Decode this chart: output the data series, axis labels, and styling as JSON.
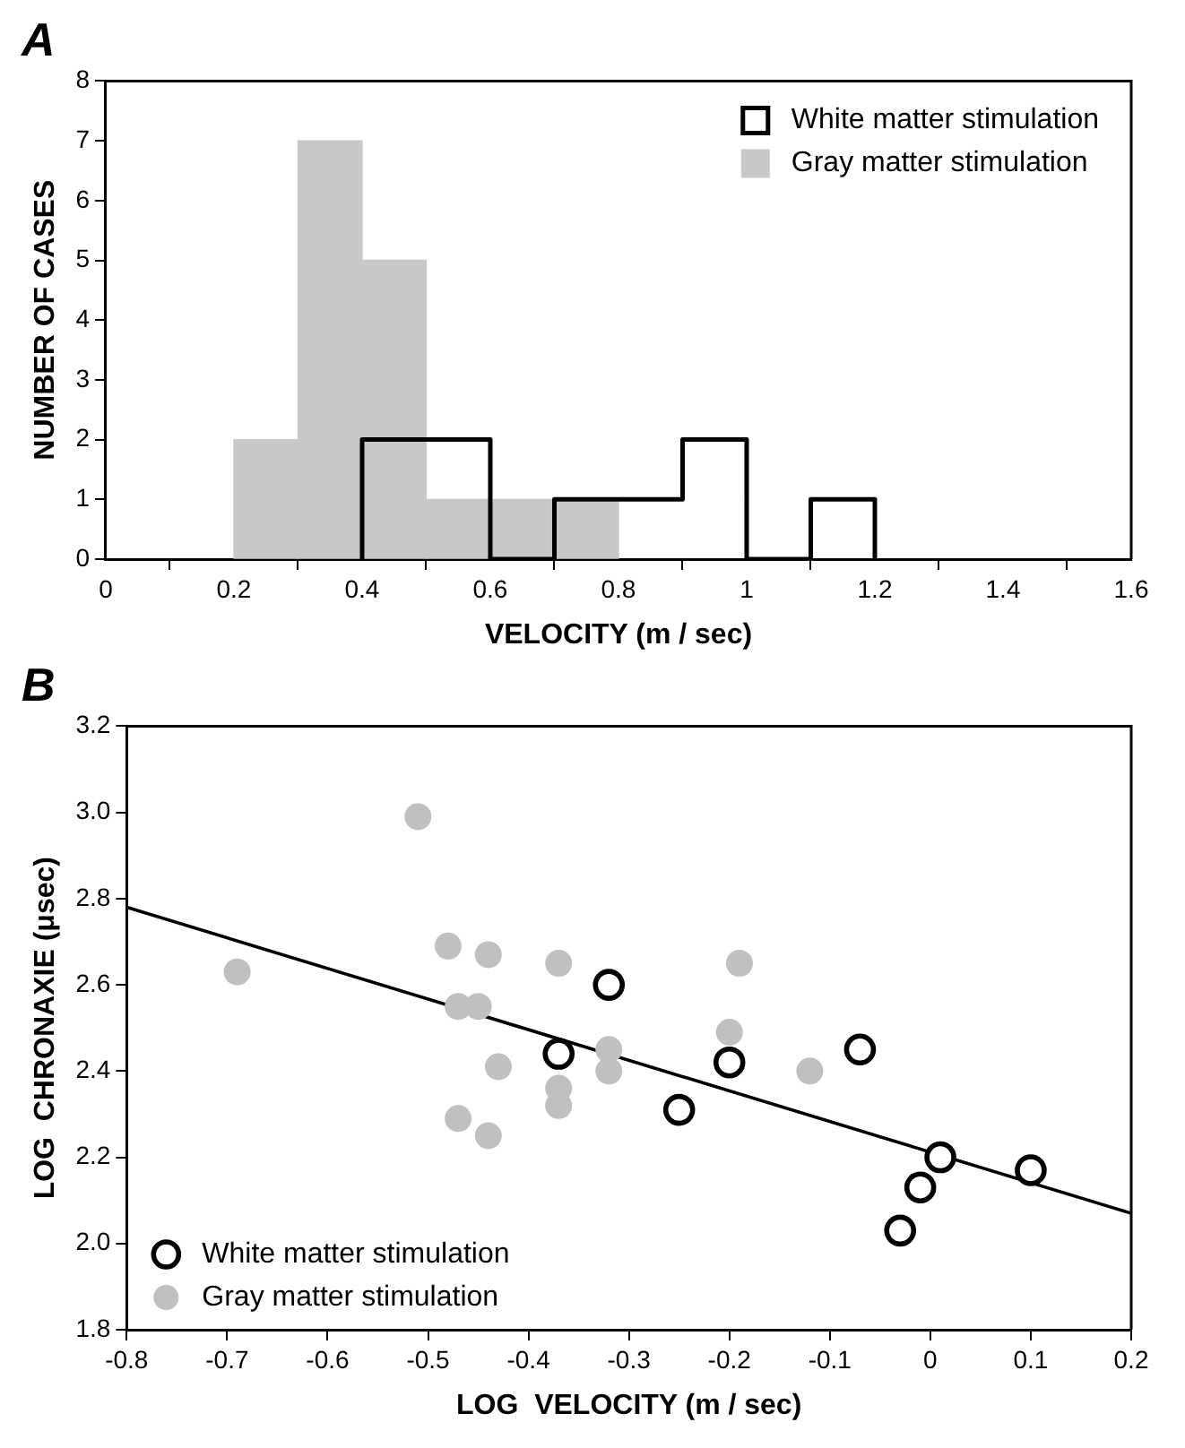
{
  "chart_data": [
    {
      "type": "histogram",
      "title": "A",
      "xlabel": "VELOCITY (m / sec)",
      "ylabel": "NUMBER OF CASES",
      "bins": [
        0.2,
        0.3,
        0.4,
        0.5,
        0.6,
        0.7,
        0.8
      ],
      "series": [
        {
          "name": "White matter stimulation",
          "type": "step",
          "color": "#000000",
          "x": [
            0.4,
            0.4,
            0.5,
            0.6,
            0.7,
            0.8,
            0.9,
            1.0,
            1.1,
            1.2
          ],
          "values": [
            0,
            2,
            2,
            0,
            1,
            1,
            2,
            0,
            1,
            0
          ]
        },
        {
          "name": "Gray matter stimulation",
          "color": "#c8c8c8",
          "values": [
            2,
            7,
            5,
            1,
            1,
            1
          ]
        }
      ],
      "xlim": [
        0,
        1.6
      ],
      "xticks": [
        0,
        0.2,
        0.4,
        0.6,
        0.8,
        1,
        1.2,
        1.4,
        1.6
      ],
      "ylim": [
        0,
        8
      ],
      "yticks": [
        0,
        1,
        2,
        3,
        4,
        5,
        6,
        7,
        8
      ],
      "legend": "top right"
    },
    {
      "type": "scatter",
      "title": "B",
      "xlabel": "LOG  VELOCITY (m / sec)",
      "ylabel": "LOG  CHRONAXIE (μsec)",
      "marker": "circle",
      "series": [
        {
          "name": "White matter stimulation",
          "color": "#000000",
          "x": [
            -0.32,
            -0.37,
            -0.25,
            -0.2,
            -0.07,
            0.01,
            -0.01,
            -0.03,
            0.1
          ],
          "values": [
            2.6,
            2.44,
            2.31,
            2.42,
            2.45,
            2.2,
            2.13,
            2.03,
            2.17
          ]
        },
        {
          "name": "Gray matter stimulation",
          "color": "#c0c0c0",
          "x": [
            -0.51,
            -0.69,
            -0.48,
            -0.44,
            -0.37,
            -0.47,
            -0.45,
            -0.43,
            -0.47,
            -0.44,
            -0.37,
            -0.37,
            -0.32,
            -0.32,
            -0.19,
            -0.2,
            -0.12
          ],
          "values": [
            2.99,
            2.63,
            2.69,
            2.67,
            2.65,
            2.55,
            2.55,
            2.41,
            2.29,
            2.25,
            2.36,
            2.32,
            2.45,
            2.4,
            2.65,
            2.49,
            2.4
          ]
        },
        {
          "type": "line",
          "marker": "none",
          "color": "#000000",
          "x": [
            -0.8,
            0.2
          ],
          "values": [
            2.78,
            2.07
          ]
        }
      ],
      "xlim": [
        -0.8,
        0.2
      ],
      "xticks": [
        -0.8,
        -0.7,
        -0.6,
        -0.5,
        -0.4,
        -0.3,
        -0.2,
        -0.1,
        0,
        0.1,
        0.2
      ],
      "ylim": [
        1.8,
        3.2
      ],
      "yticks": [
        1.8,
        {
          "value": 2,
          "label": "2.0"
        },
        2.2,
        2.4,
        2.6,
        2.8,
        {
          "value": 3,
          "label": "3.0"
        },
        3.2
      ],
      "legend": "bottom left"
    }
  ]
}
